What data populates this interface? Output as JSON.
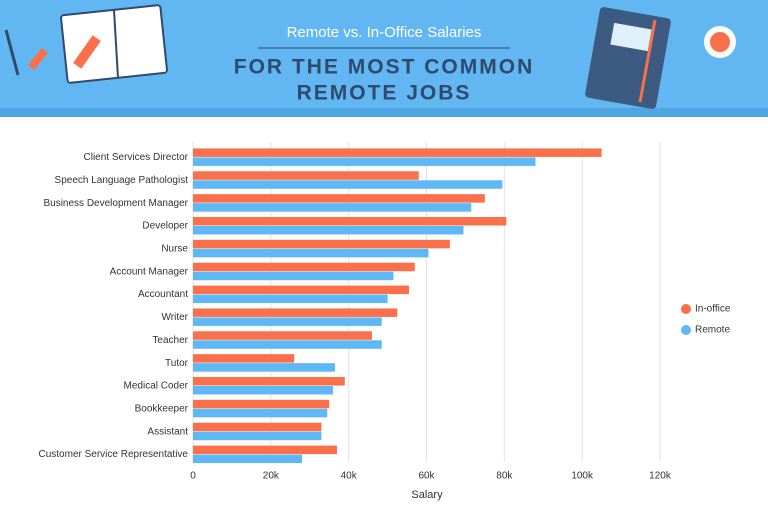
{
  "chart_data": {
    "type": "hbar",
    "title": "Remote vs. In-Office Salaries",
    "subtitle": [
      "FOR THE MOST COMMON",
      "REMOTE JOBS"
    ],
    "x_label": "Salary",
    "categories": [
      "Client Services Director",
      "Speech Language Pathologist",
      "Business Development Manager",
      "Developer",
      "Nurse",
      "Account Manager",
      "Accountant",
      "Writer",
      "Teacher",
      "Tutor",
      "Medical Coder",
      "Bookkeeper",
      "Assistant",
      "Customer Service Representative"
    ],
    "series": [
      {
        "name": "In-office",
        "color": "#f9704a",
        "values": [
          105000,
          58000,
          75000,
          80500,
          66000,
          57000,
          55500,
          52500,
          46000,
          26000,
          39000,
          35000,
          33000,
          37000
        ]
      },
      {
        "name": "Remote",
        "color": "#5db8f5",
        "values": [
          88000,
          79500,
          71500,
          69500,
          60500,
          51500,
          50000,
          48500,
          48500,
          36500,
          36000,
          34500,
          33000,
          28000
        ]
      }
    ],
    "xlim": [
      0,
      120000
    ],
    "xticks": [
      0,
      {
        "value": 20000,
        "label": "20k"
      },
      {
        "value": 40000,
        "label": "40k"
      },
      {
        "value": 60000,
        "label": "60k"
      },
      {
        "value": 80000,
        "label": "80k"
      },
      {
        "value": 100000,
        "label": "100k"
      },
      {
        "value": 120000,
        "label": "120k"
      }
    ],
    "grid": true,
    "legend": "right"
  }
}
